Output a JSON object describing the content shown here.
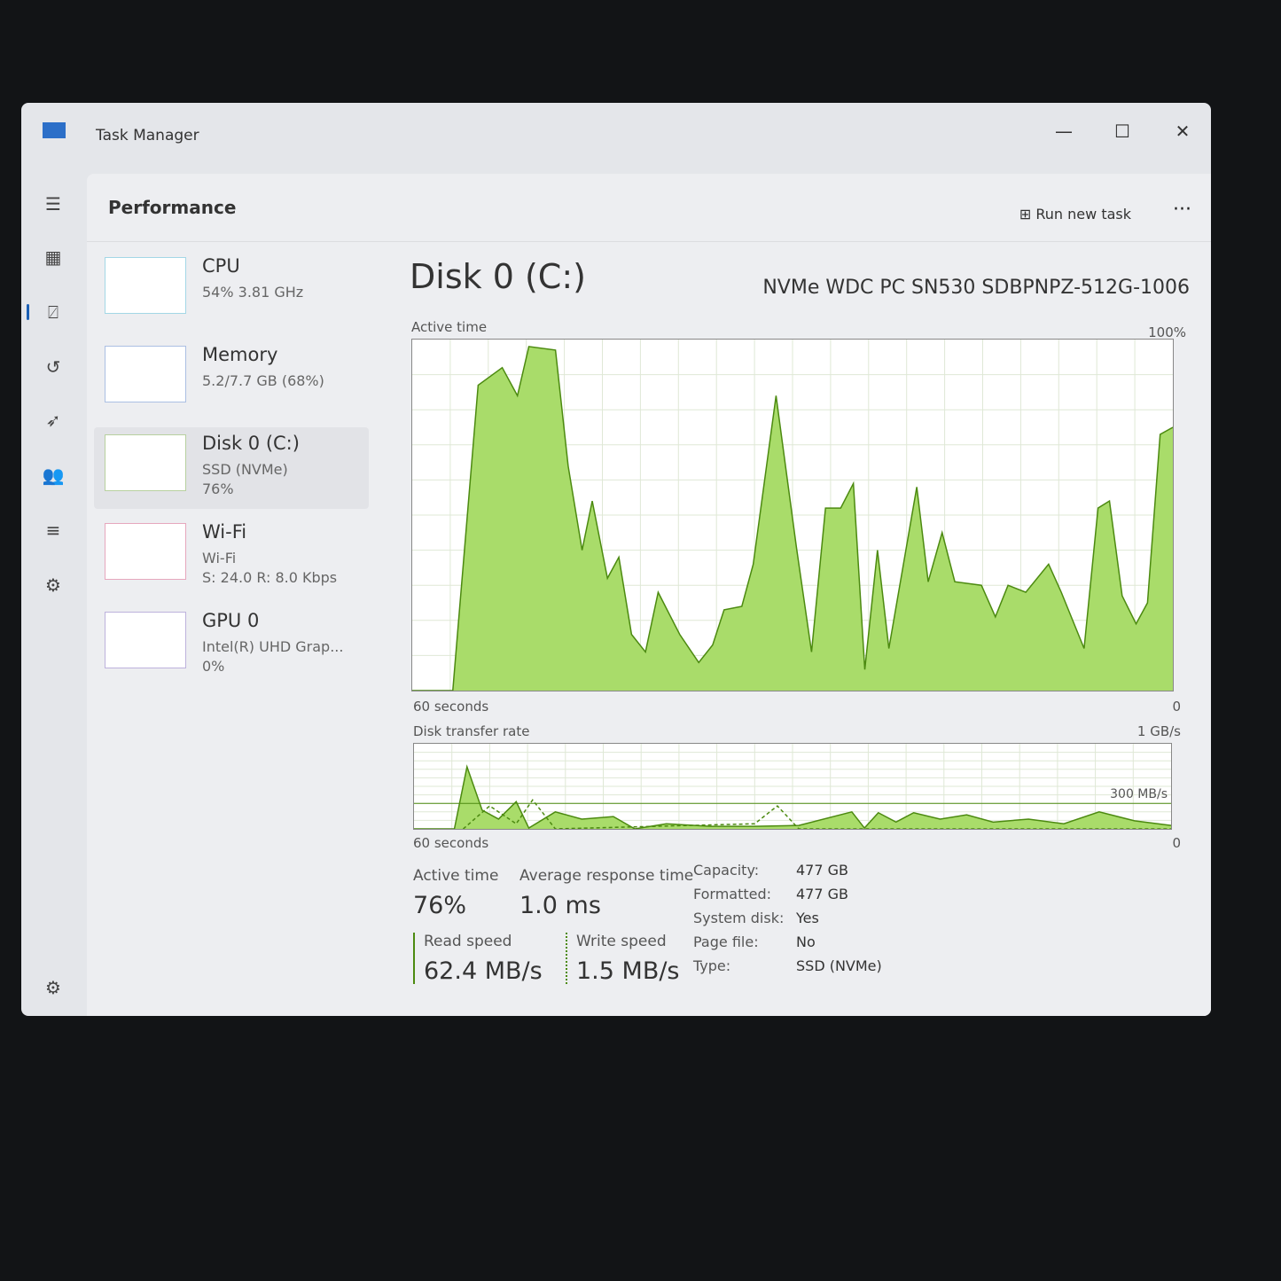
{
  "window": {
    "title": "Task Manager",
    "minimize": "—",
    "maximize": "☐",
    "close": "✕"
  },
  "nav": [
    "menu-icon",
    "processes-icon",
    "performance-icon",
    "app-history-icon",
    "startup-icon",
    "users-icon",
    "details-icon",
    "services-icon",
    "settings-icon"
  ],
  "header": {
    "title": "Performance",
    "run_new_task": "Run new task",
    "more": "···"
  },
  "sidebar": [
    {
      "name": "CPU",
      "line1": "54% 3.81 GHz",
      "line2": "",
      "color": "#1a9ac0",
      "fill": "#a9dbe8"
    },
    {
      "name": "Memory",
      "line1": "5.2/7.7 GB (68%)",
      "line2": "",
      "color": "#2c5fb8",
      "fill": "#a7c4ea"
    },
    {
      "name": "Disk 0 (C:)",
      "line1": "SSD (NVMe)",
      "line2": "76%",
      "color": "#4c8a10",
      "fill": "#b5e07a"
    },
    {
      "name": "Wi-Fi",
      "line1": "Wi-Fi",
      "line2": "S: 24.0 R: 8.0 Kbps",
      "color": "#c0245a",
      "fill": "#f2b3c8"
    },
    {
      "name": "GPU 0",
      "line1": "Intel(R) UHD Grap...",
      "line2": "0%",
      "color": "#5a3fa8",
      "fill": "#c6b8ea"
    }
  ],
  "disk": {
    "title": "Disk 0 (C:)",
    "model": "NVMe WDC PC SN530 SDBPNPZ-512G-1006"
  },
  "chart_data": [
    {
      "type": "area",
      "title": "Active time",
      "ymax_label": "100%",
      "xlabel_left": "60 seconds",
      "xlabel_right": "0",
      "ylim": [
        0,
        100
      ],
      "xlim": [
        60,
        0
      ],
      "color": "#4c8a10",
      "fill": "#a9dc6a",
      "series": [
        {
          "points": [
            [
              60,
              0
            ],
            [
              56.8,
              0
            ],
            [
              54.8,
              87
            ],
            [
              52.9,
              92
            ],
            [
              51.7,
              84
            ],
            [
              50.8,
              98
            ],
            [
              48.7,
              97
            ],
            [
              47.7,
              64
            ],
            [
              46.6,
              40
            ],
            [
              45.8,
              54
            ],
            [
              44.6,
              32
            ],
            [
              43.7,
              38
            ],
            [
              42.7,
              16
            ],
            [
              41.6,
              11
            ],
            [
              40.6,
              28
            ],
            [
              38.9,
              16
            ],
            [
              37.4,
              8
            ],
            [
              36.3,
              13
            ],
            [
              35.4,
              23
            ],
            [
              34.0,
              24
            ],
            [
              33.1,
              36
            ],
            [
              31.3,
              84
            ],
            [
              29.7,
              41
            ],
            [
              28.5,
              11
            ],
            [
              27.4,
              52
            ],
            [
              26.2,
              52
            ],
            [
              25.2,
              59
            ],
            [
              24.3,
              6
            ],
            [
              23.3,
              40
            ],
            [
              22.4,
              12
            ],
            [
              20.2,
              58
            ],
            [
              19.3,
              31
            ],
            [
              18.2,
              45
            ],
            [
              17.2,
              31
            ],
            [
              15.1,
              30
            ],
            [
              14.0,
              21
            ],
            [
              13.0,
              30
            ],
            [
              11.6,
              28
            ],
            [
              9.8,
              36
            ],
            [
              8.8,
              28
            ],
            [
              7.0,
              12
            ],
            [
              5.9,
              52
            ],
            [
              5.0,
              54
            ],
            [
              4.0,
              27
            ],
            [
              2.9,
              19
            ],
            [
              2.0,
              25
            ],
            [
              1.0,
              73
            ],
            [
              0,
              75
            ]
          ]
        }
      ]
    },
    {
      "type": "area",
      "title": "Disk transfer rate",
      "ymax_label": "1 GB/s",
      "ref_label": "300 MB/s",
      "ref_value": 300,
      "xlabel_left": "60 seconds",
      "xlabel_right": "0",
      "ylim": [
        0,
        1000
      ],
      "xlim": [
        60,
        0
      ],
      "color": "#4c8a10",
      "fill": "#a9dc6a",
      "series": [
        {
          "name": "Read speed",
          "points": [
            [
              60,
              0
            ],
            [
              56.8,
              0
            ],
            [
              55.8,
              730
            ],
            [
              54.6,
              220
            ],
            [
              53.3,
              115
            ],
            [
              51.9,
              320
            ],
            [
              50.9,
              10
            ],
            [
              48.8,
              200
            ],
            [
              46.7,
              115
            ],
            [
              44.2,
              145
            ],
            [
              42.5,
              0
            ],
            [
              40.0,
              60
            ],
            [
              36.5,
              30
            ],
            [
              33.0,
              30
            ],
            [
              29.5,
              40
            ],
            [
              25.3,
              200
            ],
            [
              24.3,
              10
            ],
            [
              23.2,
              190
            ],
            [
              21.8,
              80
            ],
            [
              20.4,
              190
            ],
            [
              18.3,
              115
            ],
            [
              16.2,
              165
            ],
            [
              14.1,
              80
            ],
            [
              11.3,
              115
            ],
            [
              8.5,
              60
            ],
            [
              5.7,
              200
            ],
            [
              2.9,
              95
            ],
            [
              0,
              40
            ]
          ]
        },
        {
          "name": "Write speed",
          "dashed": true,
          "points": [
            [
              56.1,
              0
            ],
            [
              54.0,
              270
            ],
            [
              51.9,
              60
            ],
            [
              50.6,
              340
            ],
            [
              48.8,
              0
            ],
            [
              33.0,
              60
            ],
            [
              31.2,
              270
            ],
            [
              29.5,
              0
            ],
            [
              0,
              0
            ]
          ]
        }
      ]
    }
  ],
  "stats": {
    "active_time_label": "Active time",
    "active_time": "76%",
    "avg_resp_label": "Average response time",
    "avg_resp": "1.0 ms",
    "read_label": "Read speed",
    "read": "62.4 MB/s",
    "write_label": "Write speed",
    "write": "1.5 MB/s"
  },
  "props": [
    [
      "Capacity:",
      "477 GB"
    ],
    [
      "Formatted:",
      "477 GB"
    ],
    [
      "System disk:",
      "Yes"
    ],
    [
      "Page file:",
      "No"
    ],
    [
      "Type:",
      "SSD (NVMe)"
    ]
  ]
}
